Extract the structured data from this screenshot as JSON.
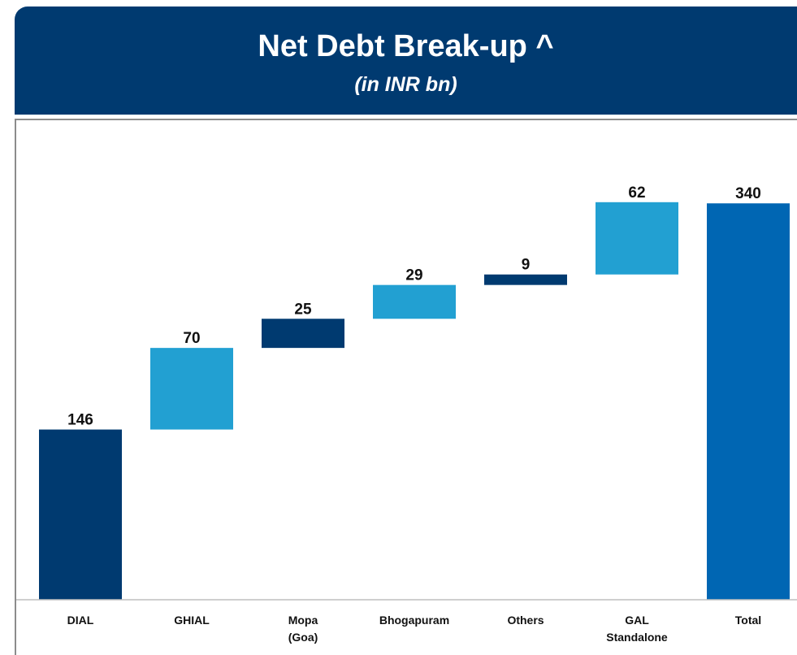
{
  "header": {
    "title": "Net Debt Break-up ^",
    "subtitle": "(in INR bn)"
  },
  "chart_data": {
    "type": "bar",
    "subtype": "waterfall",
    "categories": [
      "DIAL",
      "GHIAL",
      "Mopa\n(Goa)",
      "Bhogapuram",
      "Others",
      "GAL\nStandalone",
      "Total"
    ],
    "values": [
      146,
      70,
      25,
      29,
      9,
      62,
      340
    ],
    "data_labels": [
      "146",
      "70",
      "25",
      "29",
      "9",
      "62",
      "340"
    ],
    "bar_kinds": [
      "start",
      "increment",
      "increment",
      "increment",
      "increment",
      "increment",
      "total"
    ],
    "ylim": [
      0,
      400
    ],
    "grid": false,
    "legend": "none",
    "colors": {
      "dark": "#003a70",
      "light": "#22a0d2",
      "total": "#0066b3",
      "header": "#003a70",
      "axis": "#bfbfbf"
    },
    "bar_colors": [
      "dark",
      "light",
      "dark",
      "light",
      "dark",
      "light",
      "total"
    ]
  }
}
